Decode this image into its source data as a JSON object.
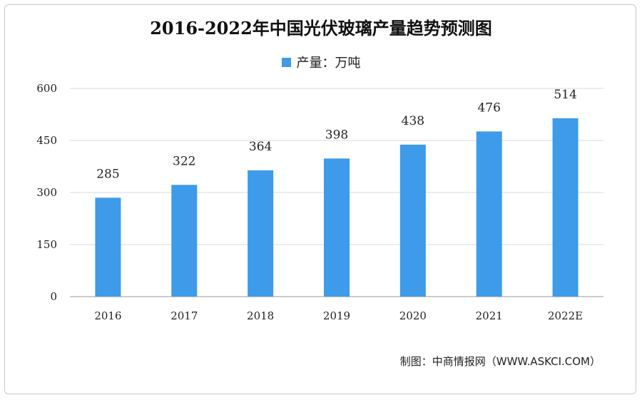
{
  "title": "2016-2022年中国光伏玻璃产量趋势预测图",
  "legend_label": "产量：万吨",
  "source": "制图：中商情报网（WWW.ASKCI.COM）",
  "colors": {
    "bar": "#3d9be9",
    "grid": "#d9d9d9",
    "axis": "#9a9a9a"
  },
  "chart_data": {
    "type": "bar",
    "title": "2016-2022年中国光伏玻璃产量趋势预测图",
    "xlabel": "",
    "ylabel": "",
    "categories": [
      "2016",
      "2017",
      "2018",
      "2019",
      "2020",
      "2021",
      "2022E"
    ],
    "series": [
      {
        "name": "产量：万吨",
        "values": [
          285,
          322,
          364,
          398,
          438,
          476,
          514
        ]
      }
    ],
    "ylim": [
      0,
      600
    ],
    "yticks": [
      0,
      150,
      300,
      450,
      600
    ],
    "grid": true,
    "legend_position": "top"
  }
}
